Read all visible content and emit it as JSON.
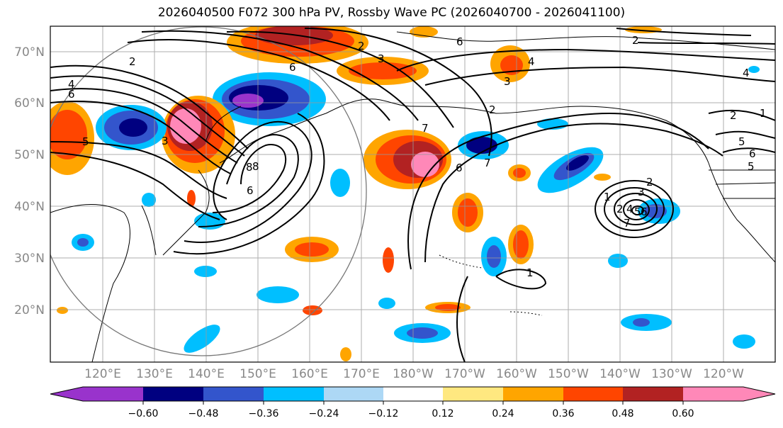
{
  "title": "2026040500 F072 300 hPa PV, Rossby Wave PC (2026040700 - 2026041100)",
  "map": {
    "lat_labels": [
      {
        "label": "70°N",
        "lat": 70
      },
      {
        "label": "60°N",
        "lat": 60
      },
      {
        "label": "50°N",
        "lat": 50
      },
      {
        "label": "40°N",
        "lat": 40
      },
      {
        "label": "30°N",
        "lat": 30
      },
      {
        "label": "20°N",
        "lat": 20
      }
    ],
    "lon_labels": [
      {
        "label": "120°E",
        "lon": 120
      },
      {
        "label": "130°E",
        "lon": 130
      },
      {
        "label": "140°E",
        "lon": 140
      },
      {
        "label": "150°E",
        "lon": 150
      },
      {
        "label": "160°E",
        "lon": 160
      },
      {
        "label": "170°E",
        "lon": 170
      },
      {
        "label": "180°W",
        "lon": 180
      },
      {
        "label": "170°W",
        "lon": 190
      },
      {
        "label": "160°W",
        "lon": 200
      },
      {
        "label": "150°W",
        "lon": 210
      },
      {
        "label": "140°W",
        "lon": 220
      },
      {
        "label": "130°W",
        "lon": 230
      },
      {
        "label": "120°W",
        "lon": 240
      }
    ],
    "contour_labels": [
      "2",
      "4",
      "6",
      "8",
      "2",
      "3",
      "6",
      "2",
      "3",
      "4",
      "2",
      "6",
      "3",
      "1",
      "2",
      "4",
      "5",
      "6",
      "8",
      "7",
      "6",
      "5",
      "7",
      "5",
      "6",
      "2",
      "1",
      "1",
      "2",
      "3",
      "4",
      "5",
      "6",
      "7"
    ]
  },
  "colorbar": {
    "colors": [
      "#9933cc",
      "#000080",
      "#3355cc",
      "#00bfff",
      "#add8f5",
      "#ffffff",
      "#ffe880",
      "#ffa500",
      "#ff4500",
      "#b22222",
      "#ff88b8"
    ],
    "tick_labels": [
      "−0.60",
      "−0.48",
      "−0.36",
      "−0.24",
      "−0.12",
      "0.12",
      "0.24",
      "0.36",
      "0.48",
      "0.60"
    ]
  }
}
